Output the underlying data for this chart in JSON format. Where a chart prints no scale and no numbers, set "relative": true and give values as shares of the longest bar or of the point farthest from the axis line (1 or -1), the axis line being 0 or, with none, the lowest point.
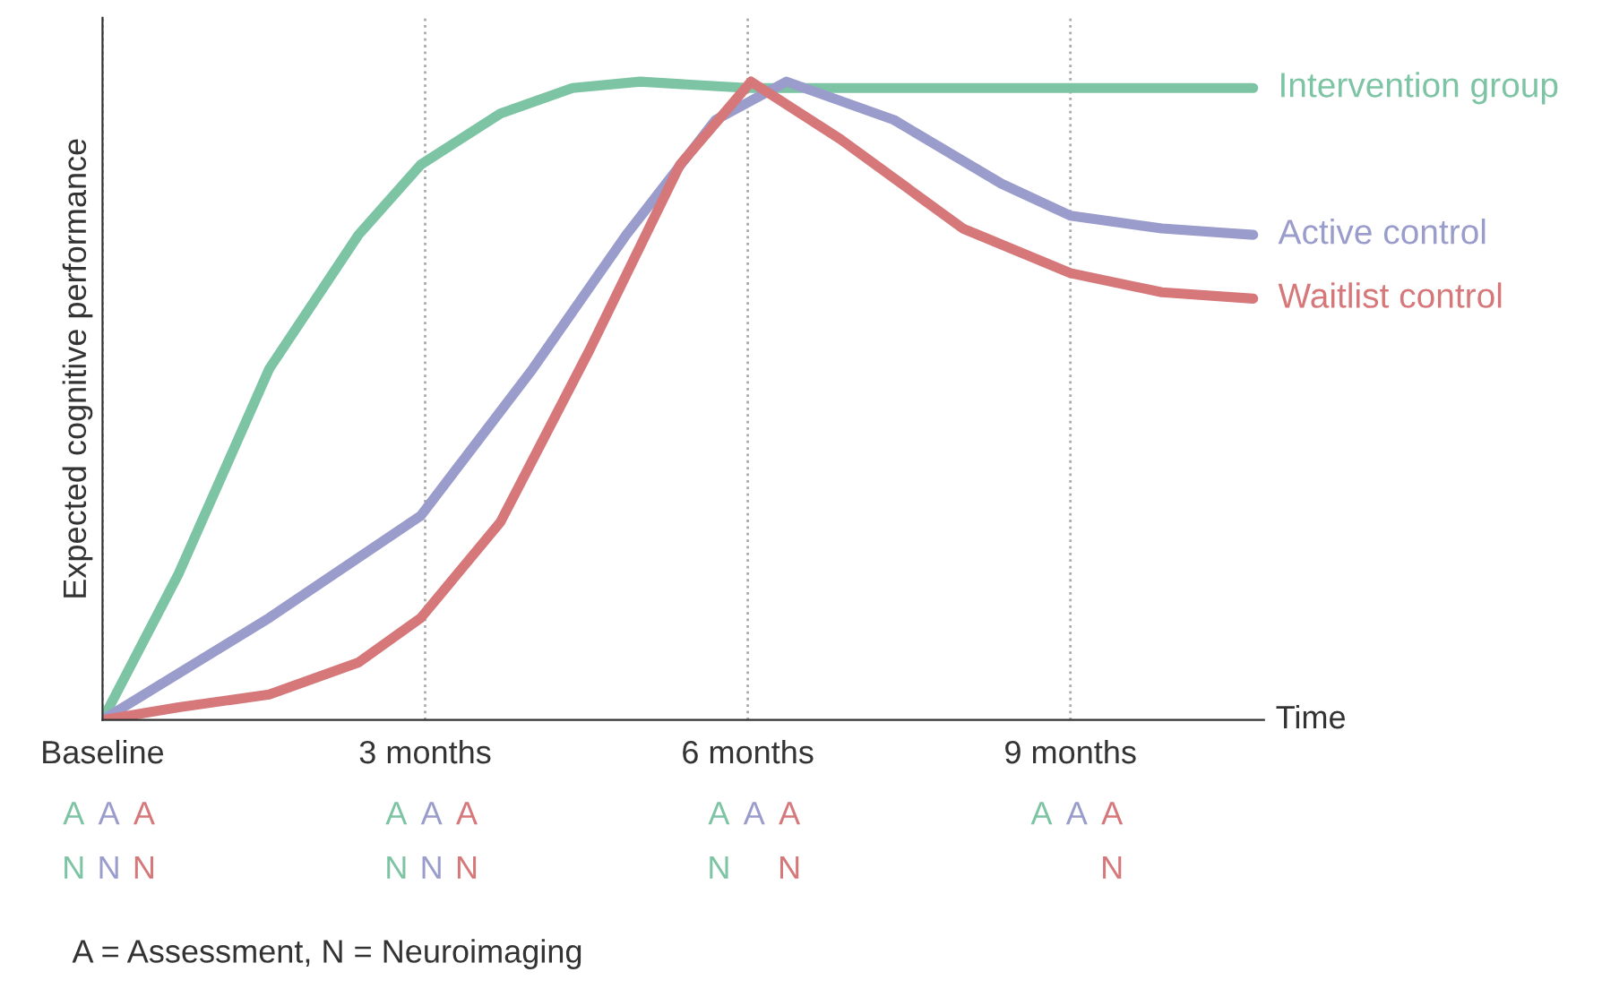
{
  "chart_data": {
    "type": "line",
    "relative": true,
    "xlabel": "Time",
    "ylabel": "Expected cognitive performance",
    "xlim": [
      0,
      10.8
    ],
    "xticks": [
      {
        "value": 0,
        "label": "Baseline"
      },
      {
        "value": 3,
        "label": "3 months"
      },
      {
        "value": 6,
        "label": "6 months"
      },
      {
        "value": 9,
        "label": "9 months"
      }
    ],
    "grid": "x",
    "legend": false,
    "marker": "none",
    "line_style": "solid",
    "series": [
      {
        "name": "Intervention group",
        "color": "#7dc4a4",
        "x": [
          0,
          0.71,
          1.55,
          2.38,
          2.96,
          3.7,
          4.37,
          5.0,
          6.0,
          8.0,
          10.7
        ],
        "values": [
          0,
          0.23,
          0.55,
          0.76,
          0.87,
          0.95,
          0.99,
          1.0,
          0.99,
          0.99,
          0.99
        ]
      },
      {
        "name": "Active control",
        "color": "#9a9ccc",
        "x": [
          0,
          1.55,
          2.96,
          4.0,
          4.87,
          5.7,
          6.36,
          7.36,
          8.36,
          9.0,
          9.85,
          10.7
        ],
        "values": [
          0,
          0.16,
          0.32,
          0.55,
          0.76,
          0.94,
          1.0,
          0.94,
          0.84,
          0.79,
          0.77,
          0.76
        ]
      },
      {
        "name": "Waitlist control",
        "color": "#d6777a",
        "x": [
          0,
          0.71,
          1.55,
          2.38,
          2.96,
          3.7,
          4.53,
          5.37,
          6.03,
          6.86,
          8.0,
          9.0,
          9.85,
          10.7
        ],
        "values": [
          0,
          0.02,
          0.04,
          0.09,
          0.16,
          0.31,
          0.58,
          0.87,
          1.0,
          0.91,
          0.77,
          0.7,
          0.67,
          0.66
        ]
      }
    ],
    "annotations": [
      "A A A",
      "N N N",
      "A A A",
      "N N N",
      "A A A",
      "N   N",
      "A A A",
      "    N",
      "A = Assessment, N = Neuroimaging"
    ]
  }
}
